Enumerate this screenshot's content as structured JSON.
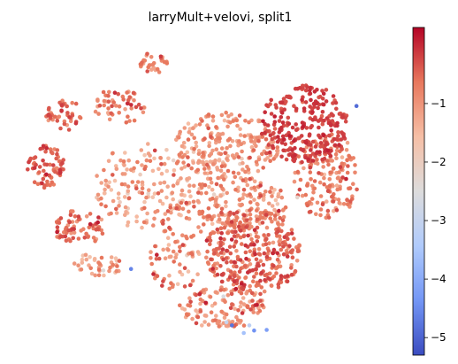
{
  "chart_data": {
    "type": "scatter",
    "title": "larryMult+velovi, split1",
    "xlabel": "",
    "ylabel": "",
    "axes_visible": false,
    "grid": false,
    "colormap": {
      "name": "coolwarm",
      "range": [
        -5.3,
        0.3
      ],
      "stops": [
        "#3b4cc0",
        "#7396f5",
        "#b0cbfc",
        "#dddcdc",
        "#f6bfa6",
        "#e8785d",
        "#b40426"
      ],
      "ticks": [
        {
          "value": -5,
          "label": "−5"
        },
        {
          "value": -4,
          "label": "−4"
        },
        {
          "value": -3,
          "label": "−3"
        },
        {
          "value": -2,
          "label": "−2"
        },
        {
          "value": -1,
          "label": "−1"
        }
      ]
    },
    "regions": [
      {
        "cx": 0.62,
        "cy": 0.7,
        "rx": 0.13,
        "ry": 0.14,
        "n": 330,
        "mean": -0.55,
        "sd": 0.28
      },
      {
        "cx": 0.55,
        "cy": 0.35,
        "rx": 0.14,
        "ry": 0.11,
        "n": 240,
        "mean": -1.05,
        "sd": 0.32
      },
      {
        "cx": 0.82,
        "cy": 0.45,
        "rx": 0.09,
        "ry": 0.14,
        "n": 170,
        "mean": -0.8,
        "sd": 0.3
      },
      {
        "cx": 0.56,
        "cy": 0.55,
        "rx": 0.16,
        "ry": 0.1,
        "n": 210,
        "mean": -0.95,
        "sd": 0.35
      },
      {
        "cx": 0.54,
        "cy": 0.88,
        "rx": 0.12,
        "ry": 0.07,
        "n": 130,
        "mean": -0.95,
        "sd": 0.4
      },
      {
        "cx": 0.32,
        "cy": 0.48,
        "rx": 0.13,
        "ry": 0.14,
        "n": 160,
        "mean": -1.2,
        "sd": 0.4
      },
      {
        "cx": 0.15,
        "cy": 0.62,
        "rx": 0.07,
        "ry": 0.06,
        "n": 70,
        "mean": -0.6,
        "sd": 0.3
      },
      {
        "cx": 0.06,
        "cy": 0.42,
        "rx": 0.05,
        "ry": 0.07,
        "n": 70,
        "mean": -0.5,
        "sd": 0.25
      },
      {
        "cx": 0.11,
        "cy": 0.25,
        "rx": 0.05,
        "ry": 0.05,
        "n": 45,
        "mean": -0.6,
        "sd": 0.3
      },
      {
        "cx": 0.26,
        "cy": 0.22,
        "rx": 0.07,
        "ry": 0.06,
        "n": 55,
        "mean": -0.75,
        "sd": 0.3
      },
      {
        "cx": 0.35,
        "cy": 0.08,
        "rx": 0.04,
        "ry": 0.04,
        "n": 30,
        "mean": -0.8,
        "sd": 0.3
      },
      {
        "cx": 0.76,
        "cy": 0.28,
        "rx": 0.12,
        "ry": 0.13,
        "n": 260,
        "mean": -0.2,
        "sd": 0.12
      },
      {
        "cx": 0.2,
        "cy": 0.74,
        "rx": 0.07,
        "ry": 0.04,
        "n": 40,
        "mean": -1.1,
        "sd": 0.4
      },
      {
        "cx": 0.41,
        "cy": 0.72,
        "rx": 0.07,
        "ry": 0.11,
        "n": 70,
        "mean": -0.9,
        "sd": 0.4
      }
    ],
    "outliers": [
      {
        "x": 0.29,
        "y": 0.755,
        "v": -4.6
      },
      {
        "x": 0.563,
        "y": 0.94,
        "v": -4.8
      },
      {
        "x": 0.623,
        "y": 0.957,
        "v": -4.4
      },
      {
        "x": 0.657,
        "y": 0.955,
        "v": -4.2
      },
      {
        "x": 0.595,
        "y": 0.965,
        "v": -3.6
      },
      {
        "x": 0.548,
        "y": 0.93,
        "v": -3.0
      },
      {
        "x": 0.61,
        "y": 0.94,
        "v": -3.2
      },
      {
        "x": 0.9,
        "y": 0.22,
        "v": -4.9
      },
      {
        "x": 0.54,
        "y": 0.845,
        "v": -2.6
      },
      {
        "x": 0.215,
        "y": 0.76,
        "v": -2.4
      },
      {
        "x": 0.74,
        "y": 0.52,
        "v": -2.2
      }
    ]
  }
}
